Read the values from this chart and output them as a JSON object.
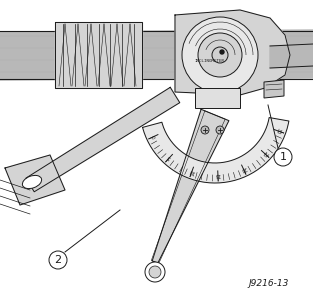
{
  "figsize": [
    3.13,
    2.96
  ],
  "dpi": 100,
  "bg_color": "#ffffff",
  "label1": "1",
  "label2": "2",
  "caption_code": "J9216-13",
  "inclinometer_text": "INCLINOMETER",
  "scale_labels": [
    "0",
    "5",
    "10",
    "15",
    "20",
    "25",
    "30"
  ],
  "drawing_color": "#1a1a1a",
  "gray_light": "#d4d4d4",
  "gray_mid": "#b8b8b8",
  "gray_dark": "#909090",
  "white": "#ffffff"
}
